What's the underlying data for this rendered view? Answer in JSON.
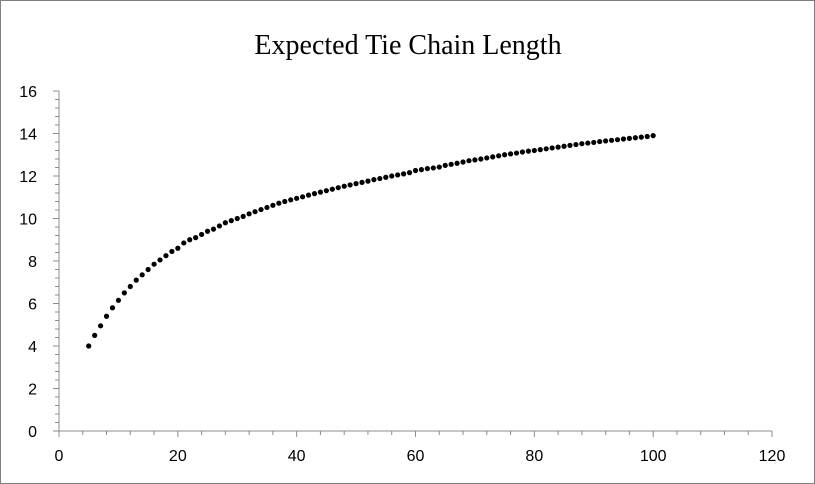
{
  "chart_data": {
    "type": "scatter",
    "title": "Expected Tie Chain Length",
    "xlabel": "",
    "ylabel": "",
    "xlim": [
      0,
      120
    ],
    "ylim": [
      0,
      16
    ],
    "x_ticks": [
      0,
      20,
      40,
      60,
      80,
      100,
      120
    ],
    "y_ticks": [
      0,
      2,
      4,
      6,
      8,
      10,
      12,
      14,
      16
    ],
    "x_tick_labels": [
      "0",
      "20",
      "40",
      "60",
      "80",
      "100",
      "120"
    ],
    "y_tick_labels": [
      "0",
      "2",
      "4",
      "6",
      "8",
      "10",
      "12",
      "14",
      "16"
    ],
    "grid": false,
    "legend": "none",
    "marker_color": "#000000",
    "series": [
      {
        "name": "",
        "x": [
          5,
          6,
          7,
          8,
          9,
          10,
          11,
          12,
          13,
          14,
          15,
          16,
          17,
          18,
          19,
          20,
          21,
          22,
          23,
          24,
          25,
          26,
          27,
          28,
          29,
          30,
          31,
          32,
          33,
          34,
          35,
          36,
          37,
          38,
          39,
          40,
          41,
          42,
          43,
          44,
          45,
          46,
          47,
          48,
          49,
          50,
          51,
          52,
          53,
          54,
          55,
          56,
          57,
          58,
          59,
          60,
          61,
          62,
          63,
          64,
          65,
          66,
          67,
          68,
          69,
          70,
          71,
          72,
          73,
          74,
          75,
          76,
          77,
          78,
          79,
          80,
          81,
          82,
          83,
          84,
          85,
          86,
          87,
          88,
          89,
          90,
          91,
          92,
          93,
          94,
          95,
          96,
          97,
          98,
          99,
          100
        ],
        "y": [
          4.0,
          4.5,
          4.95,
          5.4,
          5.8,
          6.15,
          6.5,
          6.8,
          7.1,
          7.35,
          7.6,
          7.85,
          8.05,
          8.25,
          8.45,
          8.6,
          8.85,
          9.0,
          9.1,
          9.25,
          9.4,
          9.5,
          9.65,
          9.8,
          9.9,
          10.0,
          10.1,
          10.22,
          10.32,
          10.42,
          10.52,
          10.62,
          10.72,
          10.8,
          10.88,
          10.95,
          11.02,
          11.1,
          11.17,
          11.24,
          11.31,
          11.38,
          11.45,
          11.52,
          11.58,
          11.64,
          11.7,
          11.76,
          11.83,
          11.88,
          11.94,
          12.0,
          12.05,
          12.1,
          12.16,
          12.26,
          12.3,
          12.35,
          12.38,
          12.42,
          12.5,
          12.55,
          12.6,
          12.66,
          12.72,
          12.76,
          12.8,
          12.85,
          12.9,
          12.95,
          13.0,
          13.04,
          13.08,
          13.13,
          13.17,
          13.2,
          13.24,
          13.28,
          13.32,
          13.36,
          13.4,
          13.44,
          13.48,
          13.52,
          13.55,
          13.58,
          13.62,
          13.65,
          13.68,
          13.71,
          13.74,
          13.77,
          13.8,
          13.83,
          13.86,
          13.9
        ]
      }
    ]
  }
}
